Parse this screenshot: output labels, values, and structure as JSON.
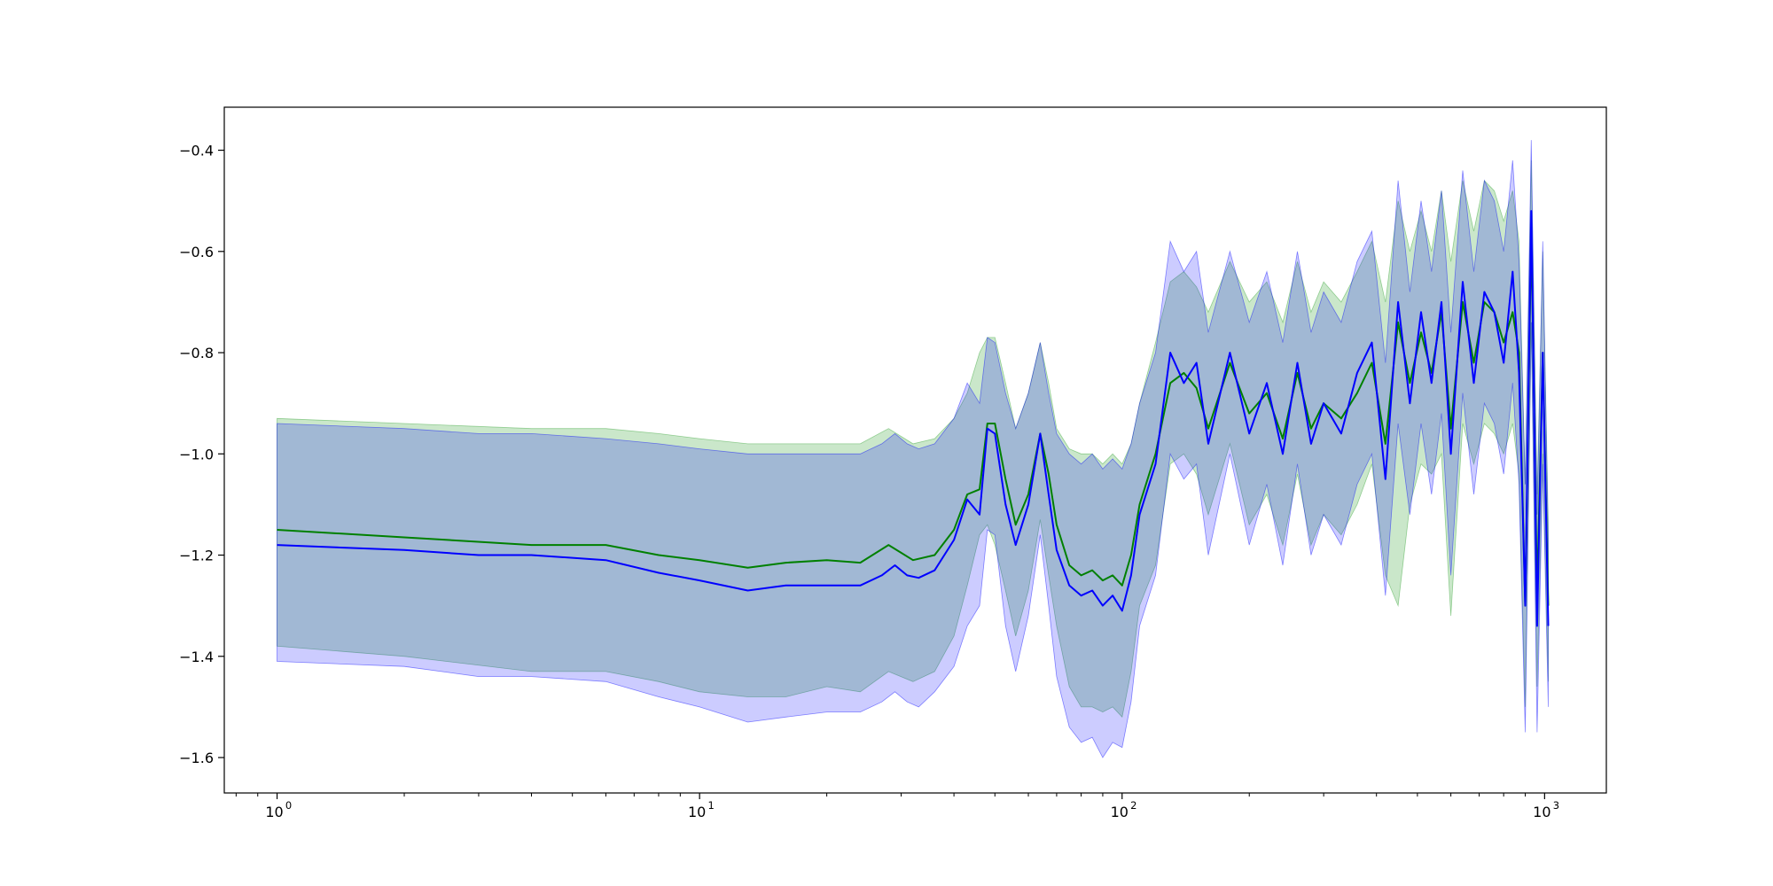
{
  "chart_data": {
    "type": "line",
    "title": "",
    "xlabel": "",
    "ylabel": "",
    "x_scale": "log",
    "xlim": [
      0.75,
      1400
    ],
    "ylim": [
      -1.67,
      -0.315
    ],
    "grid": false,
    "legend": "none",
    "x_ticks": [
      {
        "value": 1,
        "base": "10",
        "exp": "0"
      },
      {
        "value": 10,
        "base": "10",
        "exp": "1"
      },
      {
        "value": 100,
        "base": "10",
        "exp": "2"
      },
      {
        "value": 1000,
        "base": "10",
        "exp": "3"
      }
    ],
    "y_ticks": [
      {
        "value": -0.4,
        "label": "−0.4"
      },
      {
        "value": -0.6,
        "label": "−0.6"
      },
      {
        "value": -0.8,
        "label": "−0.8"
      },
      {
        "value": -1.0,
        "label": "−1.0"
      },
      {
        "value": -1.2,
        "label": "−1.2"
      },
      {
        "value": -1.4,
        "label": "−1.4"
      },
      {
        "value": -1.6,
        "label": "−1.6"
      }
    ],
    "series": [
      {
        "color": "#008000",
        "band_color": "#2ca02c",
        "band_opacity": 0.25,
        "x": [
          1,
          2,
          4,
          6,
          8,
          10,
          13,
          16,
          20,
          24,
          28,
          32,
          36,
          40,
          43,
          46,
          48,
          50,
          53,
          56,
          60,
          64,
          67,
          70,
          75,
          80,
          85,
          90,
          95,
          100,
          105,
          110,
          120,
          130,
          140,
          150,
          160,
          180,
          200,
          220,
          240,
          260,
          280,
          300,
          330,
          360,
          390,
          420,
          450,
          480,
          510,
          540,
          570,
          600,
          640,
          680,
          720,
          760,
          800,
          840,
          870,
          900,
          930,
          960,
          990,
          1020
        ],
        "y": [
          -1.15,
          -1.165,
          -1.18,
          -1.18,
          -1.2,
          -1.21,
          -1.225,
          -1.215,
          -1.21,
          -1.215,
          -1.18,
          -1.21,
          -1.2,
          -1.15,
          -1.08,
          -1.07,
          -0.94,
          -0.94,
          -1.05,
          -1.14,
          -1.08,
          -0.96,
          -1.04,
          -1.14,
          -1.22,
          -1.24,
          -1.23,
          -1.25,
          -1.24,
          -1.26,
          -1.2,
          -1.1,
          -1.0,
          -0.86,
          -0.84,
          -0.87,
          -0.95,
          -0.82,
          -0.92,
          -0.88,
          -0.97,
          -0.84,
          -0.95,
          -0.9,
          -0.93,
          -0.88,
          -0.82,
          -0.98,
          -0.74,
          -0.86,
          -0.76,
          -0.84,
          -0.72,
          -0.95,
          -0.7,
          -0.82,
          -0.7,
          -0.72,
          -0.78,
          -0.72,
          -0.8,
          -1.3,
          -0.56,
          -1.28,
          -0.8,
          -1.3
        ],
        "lower": [
          -1.38,
          -1.4,
          -1.43,
          -1.43,
          -1.45,
          -1.47,
          -1.48,
          -1.48,
          -1.46,
          -1.47,
          -1.43,
          -1.45,
          -1.43,
          -1.36,
          -1.26,
          -1.16,
          -1.14,
          -1.18,
          -1.27,
          -1.36,
          -1.27,
          -1.13,
          -1.24,
          -1.34,
          -1.46,
          -1.5,
          -1.5,
          -1.51,
          -1.5,
          -1.52,
          -1.43,
          -1.3,
          -1.22,
          -1.02,
          -1.0,
          -1.04,
          -1.12,
          -0.98,
          -1.14,
          -1.08,
          -1.18,
          -1.04,
          -1.18,
          -1.12,
          -1.16,
          -1.1,
          -1.02,
          -1.24,
          -1.3,
          -1.1,
          -1.02,
          -1.04,
          -1.0,
          -1.32,
          -0.94,
          -1.02,
          -0.94,
          -0.96,
          -1.0,
          -0.94,
          -1.04,
          -1.5,
          -0.74,
          -1.46,
          -1.0,
          -1.45
        ],
        "upper": [
          -0.93,
          -0.94,
          -0.95,
          -0.95,
          -0.96,
          -0.97,
          -0.98,
          -0.98,
          -0.98,
          -0.98,
          -0.95,
          -0.98,
          -0.97,
          -0.93,
          -0.88,
          -0.8,
          -0.77,
          -0.77,
          -0.86,
          -0.95,
          -0.88,
          -0.78,
          -0.86,
          -0.95,
          -0.99,
          -1.0,
          -1.0,
          -1.02,
          -1.0,
          -1.02,
          -0.98,
          -0.9,
          -0.78,
          -0.66,
          -0.64,
          -0.67,
          -0.72,
          -0.62,
          -0.7,
          -0.66,
          -0.74,
          -0.62,
          -0.72,
          -0.66,
          -0.7,
          -0.64,
          -0.58,
          -0.7,
          -0.5,
          -0.6,
          -0.52,
          -0.6,
          -0.48,
          -0.62,
          -0.46,
          -0.56,
          -0.46,
          -0.48,
          -0.54,
          -0.48,
          -0.58,
          -1.06,
          -0.42,
          -1.08,
          -0.6,
          -1.14
        ]
      },
      {
        "color": "#0000ff",
        "band_color": "#0000ff",
        "band_opacity": 0.2,
        "x": [
          1,
          2,
          3,
          4,
          6,
          8,
          10,
          13,
          16,
          20,
          24,
          27,
          29,
          31,
          33,
          36,
          40,
          43,
          46,
          48,
          50,
          53,
          56,
          60,
          64,
          67,
          70,
          75,
          80,
          85,
          90,
          95,
          100,
          105,
          110,
          120,
          130,
          140,
          150,
          160,
          180,
          200,
          220,
          240,
          260,
          280,
          300,
          330,
          360,
          390,
          420,
          450,
          480,
          510,
          540,
          570,
          600,
          640,
          680,
          720,
          760,
          800,
          840,
          870,
          900,
          930,
          960,
          990,
          1020
        ],
        "y": [
          -1.18,
          -1.19,
          -1.2,
          -1.2,
          -1.21,
          -1.235,
          -1.25,
          -1.27,
          -1.26,
          -1.26,
          -1.26,
          -1.24,
          -1.22,
          -1.24,
          -1.245,
          -1.23,
          -1.17,
          -1.09,
          -1.12,
          -0.95,
          -0.96,
          -1.1,
          -1.18,
          -1.1,
          -0.96,
          -1.08,
          -1.19,
          -1.26,
          -1.28,
          -1.27,
          -1.3,
          -1.28,
          -1.31,
          -1.24,
          -1.12,
          -1.02,
          -0.8,
          -0.86,
          -0.82,
          -0.98,
          -0.8,
          -0.96,
          -0.86,
          -1.0,
          -0.82,
          -0.98,
          -0.9,
          -0.96,
          -0.84,
          -0.78,
          -1.05,
          -0.7,
          -0.9,
          -0.72,
          -0.86,
          -0.7,
          -1.0,
          -0.66,
          -0.86,
          -0.68,
          -0.72,
          -0.82,
          -0.64,
          -0.84,
          -1.3,
          -0.52,
          -1.34,
          -0.8,
          -1.34
        ],
        "lower": [
          -1.41,
          -1.42,
          -1.44,
          -1.44,
          -1.45,
          -1.48,
          -1.5,
          -1.53,
          -1.52,
          -1.51,
          -1.51,
          -1.49,
          -1.47,
          -1.49,
          -1.5,
          -1.47,
          -1.42,
          -1.34,
          -1.3,
          -1.15,
          -1.16,
          -1.34,
          -1.43,
          -1.32,
          -1.16,
          -1.3,
          -1.44,
          -1.54,
          -1.57,
          -1.56,
          -1.6,
          -1.57,
          -1.58,
          -1.49,
          -1.34,
          -1.24,
          -1.0,
          -1.05,
          -1.02,
          -1.2,
          -1.0,
          -1.18,
          -1.06,
          -1.22,
          -1.02,
          -1.2,
          -1.12,
          -1.18,
          -1.06,
          -1.0,
          -1.28,
          -0.94,
          -1.12,
          -0.94,
          -1.08,
          -0.92,
          -1.24,
          -0.88,
          -1.08,
          -0.9,
          -0.94,
          -1.04,
          -0.86,
          -1.06,
          -1.55,
          -0.74,
          -1.55,
          -1.02,
          -1.5
        ],
        "upper": [
          -0.94,
          -0.95,
          -0.96,
          -0.96,
          -0.97,
          -0.98,
          -0.99,
          -1.0,
          -1.0,
          -1.0,
          -1.0,
          -0.98,
          -0.96,
          -0.98,
          -0.99,
          -0.98,
          -0.93,
          -0.86,
          -0.9,
          -0.77,
          -0.78,
          -0.88,
          -0.95,
          -0.88,
          -0.78,
          -0.88,
          -0.96,
          -1.0,
          -1.02,
          -1.0,
          -1.03,
          -1.01,
          -1.03,
          -0.98,
          -0.9,
          -0.8,
          -0.58,
          -0.64,
          -0.6,
          -0.76,
          -0.6,
          -0.74,
          -0.64,
          -0.78,
          -0.6,
          -0.76,
          -0.68,
          -0.74,
          -0.62,
          -0.56,
          -0.82,
          -0.46,
          -0.68,
          -0.5,
          -0.64,
          -0.48,
          -0.76,
          -0.44,
          -0.64,
          -0.46,
          -0.5,
          -0.6,
          -0.42,
          -0.62,
          -1.06,
          -0.38,
          -1.12,
          -0.58,
          -1.18
        ]
      }
    ]
  }
}
